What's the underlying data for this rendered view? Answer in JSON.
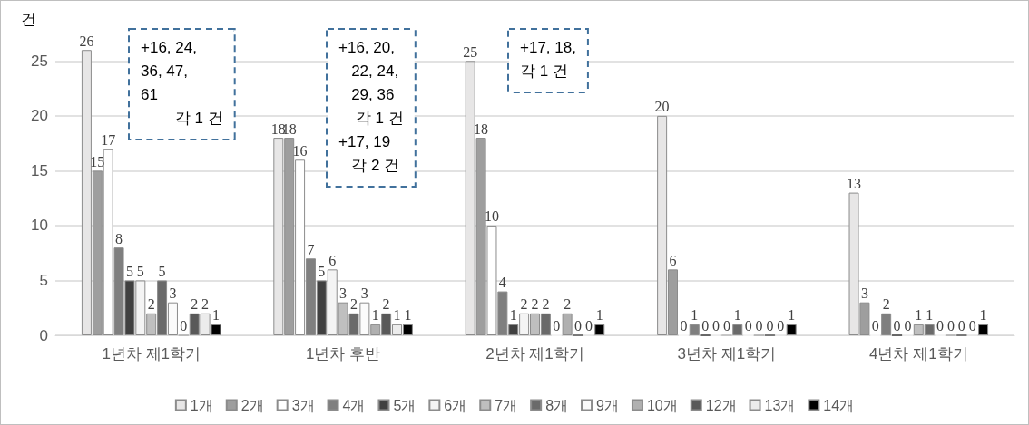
{
  "chart_data": {
    "type": "bar",
    "ylabel": "건",
    "categories": [
      "1년차 제1학기",
      "1년차 후반",
      "2년차 제1학기",
      "3년차 제1학기",
      "4년차 제1학기"
    ],
    "series": [
      {
        "name": "1개",
        "color": "#e7e6e6",
        "values": [
          26,
          18,
          25,
          20,
          13
        ]
      },
      {
        "name": "2개",
        "color": "#9e9e9e",
        "values": [
          15,
          18,
          18,
          6,
          3
        ]
      },
      {
        "name": "3개",
        "color": "#ffffff",
        "values": [
          17,
          16,
          10,
          0,
          0
        ]
      },
      {
        "name": "4개",
        "color": "#7f7f7f",
        "values": [
          8,
          7,
          4,
          1,
          2
        ]
      },
      {
        "name": "5개",
        "color": "#404040",
        "values": [
          5,
          5,
          1,
          0,
          0
        ]
      },
      {
        "name": "6개",
        "color": "#f4f4f4",
        "values": [
          5,
          6,
          2,
          0,
          0
        ]
      },
      {
        "name": "7개",
        "color": "#bfbfbf",
        "values": [
          2,
          3,
          2,
          0,
          1
        ]
      },
      {
        "name": "8개",
        "color": "#6a6a6a",
        "values": [
          5,
          2,
          2,
          1,
          1
        ]
      },
      {
        "name": "9개",
        "color": "#fbfbfb",
        "values": [
          3,
          3,
          0,
          0,
          0
        ]
      },
      {
        "name": "10개",
        "color": "#b0b0b0",
        "values": [
          0,
          1,
          2,
          0,
          0
        ]
      },
      {
        "name": "12개",
        "color": "#595959",
        "values": [
          2,
          2,
          0,
          0,
          0
        ]
      },
      {
        "name": "13개",
        "color": "#ececec",
        "values": [
          2,
          1,
          0,
          0,
          0
        ]
      },
      {
        "name": "14개",
        "color": "#000000",
        "values": [
          1,
          1,
          1,
          1,
          1
        ]
      }
    ],
    "ylim": [
      0,
      28
    ],
    "yticks": [
      0,
      5,
      10,
      15,
      20,
      25
    ],
    "grid": "y",
    "legend": "bottom",
    "data_labels": true,
    "annotations": [
      "+16, 24,\n36, 47,\n61\n        각 1 건",
      "+16, 20,\n   22, 24,\n   29, 36\n    각 1 건\n+17, 19\n   각 2 건",
      "+17, 18,\n각 1 건"
    ]
  }
}
